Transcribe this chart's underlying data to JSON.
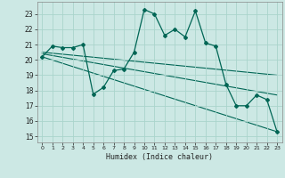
{
  "xlabel": "Humidex (Indice chaleur)",
  "bg_color": "#cce8e4",
  "grid_color": "#aad4cc",
  "line_color": "#006655",
  "xlim": [
    -0.5,
    23.5
  ],
  "ylim": [
    14.6,
    23.8
  ],
  "yticks": [
    15,
    16,
    17,
    18,
    19,
    20,
    21,
    22,
    23
  ],
  "xticks": [
    0,
    1,
    2,
    3,
    4,
    5,
    6,
    7,
    8,
    9,
    10,
    11,
    12,
    13,
    14,
    15,
    16,
    17,
    18,
    19,
    20,
    21,
    22,
    23
  ],
  "main_x": [
    0,
    1,
    2,
    3,
    4,
    5,
    6,
    7,
    8,
    9,
    10,
    11,
    12,
    13,
    14,
    15,
    16,
    17,
    18,
    19,
    20,
    21,
    22,
    23
  ],
  "main_y": [
    20.2,
    20.9,
    20.8,
    20.8,
    21.0,
    17.75,
    18.2,
    19.3,
    19.4,
    20.5,
    23.3,
    23.0,
    21.6,
    22.0,
    21.5,
    23.2,
    21.1,
    20.9,
    18.4,
    17.0,
    17.0,
    17.7,
    17.4,
    15.3
  ],
  "regression_lines": [
    {
      "x": [
        0,
        23
      ],
      "y": [
        20.5,
        19.0
      ]
    },
    {
      "x": [
        0,
        23
      ],
      "y": [
        20.4,
        17.7
      ]
    },
    {
      "x": [
        0,
        23
      ],
      "y": [
        20.2,
        15.3
      ]
    }
  ]
}
